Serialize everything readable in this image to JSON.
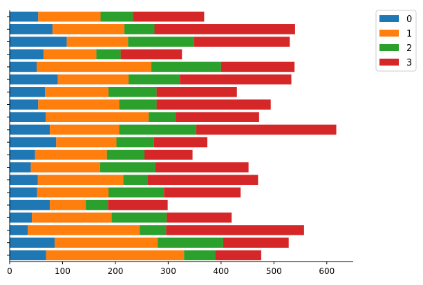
{
  "chart_data": {
    "type": "bar",
    "orientation": "horizontal",
    "stacked": true,
    "title": "",
    "xlabel": "",
    "ylabel": "",
    "xlim": [
      0,
      650
    ],
    "x_ticks": [
      "0",
      "100",
      "200",
      "300",
      "400",
      "500",
      "600"
    ],
    "y_tick_labels_shown": false,
    "grid": false,
    "legend_position": "top-right, outside plot",
    "series": [
      {
        "name": "0",
        "color": "#1f77b4",
        "values": [
          69,
          85,
          34,
          42,
          76,
          52,
          53,
          40,
          48,
          88,
          76,
          68,
          54,
          67,
          91,
          51,
          64,
          108,
          81,
          54
        ]
      },
      {
        "name": "1",
        "color": "#ff7f0e",
        "values": [
          261,
          195,
          212,
          151,
          68,
          135,
          162,
          131,
          136,
          114,
          131,
          195,
          153,
          120,
          134,
          217,
          100,
          116,
          136,
          118
        ]
      },
      {
        "name": "2",
        "color": "#2ca02c",
        "values": [
          59,
          124,
          50,
          104,
          42,
          105,
          46,
          104,
          71,
          71,
          146,
          51,
          71,
          91,
          97,
          132,
          46,
          125,
          57,
          61
        ]
      },
      {
        "name": "3",
        "color": "#d62728",
        "values": [
          87,
          124,
          261,
          123,
          113,
          145,
          209,
          177,
          91,
          101,
          265,
          158,
          216,
          152,
          211,
          139,
          116,
          181,
          266,
          135
        ]
      }
    ]
  }
}
